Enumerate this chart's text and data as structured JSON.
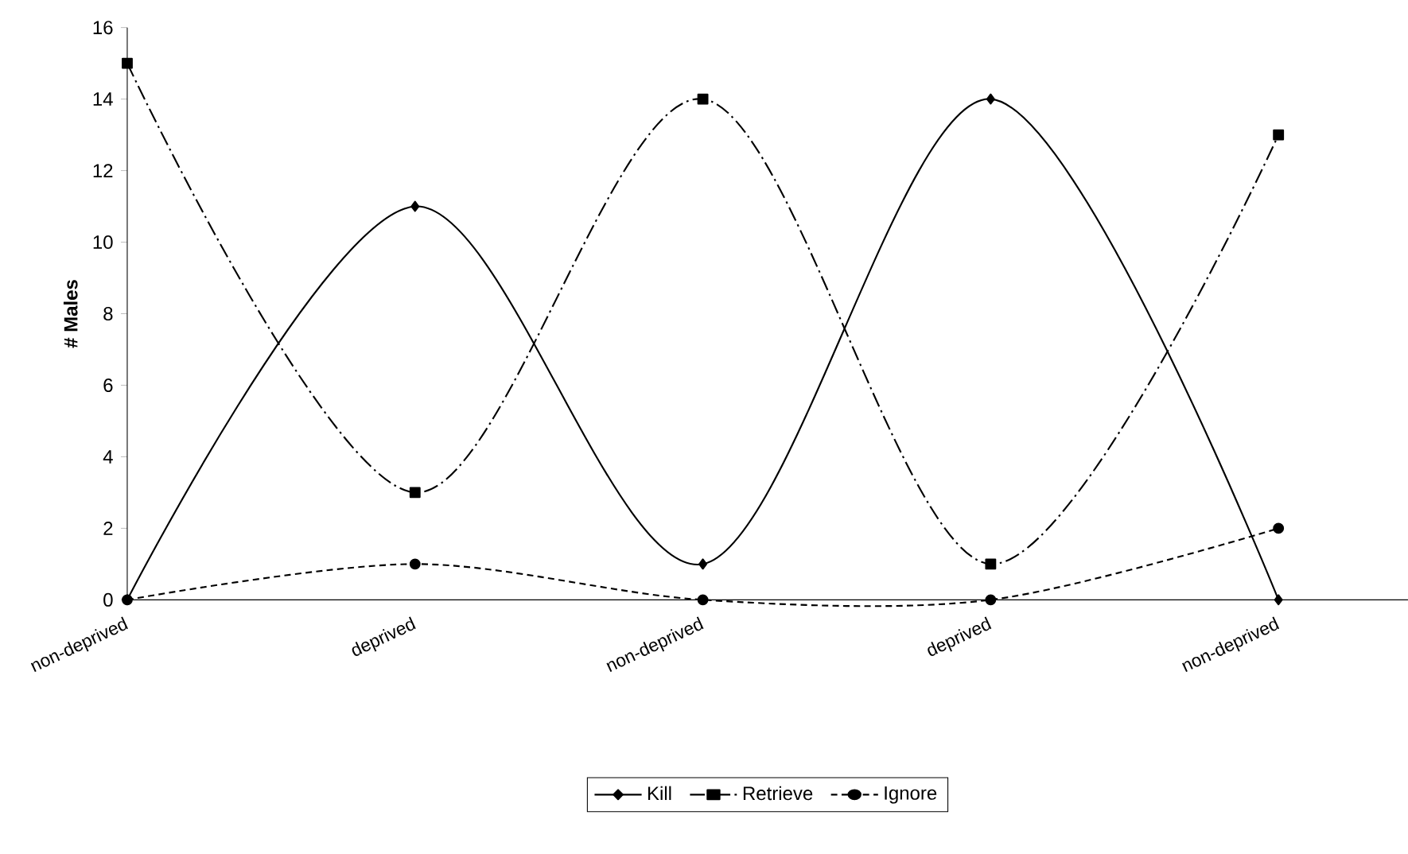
{
  "chart_data": {
    "type": "line",
    "ylabel": "# Males",
    "categories": [
      "non-deprived",
      "deprived",
      "non-deprived",
      "deprived",
      "non-deprived"
    ],
    "series": [
      {
        "name": "Kill",
        "color": "#000000",
        "values": [
          0,
          11,
          1,
          14,
          0
        ],
        "marker": "diamond",
        "line_style": "solid"
      },
      {
        "name": "Retrieve",
        "color": "#000000",
        "values": [
          15,
          3,
          14,
          1,
          13
        ],
        "marker": "square",
        "line_style": "dashed"
      },
      {
        "name": "Ignore",
        "color": "#000000",
        "values": [
          0,
          1,
          0,
          0,
          2
        ],
        "marker": "circle",
        "line_style": "dotted"
      }
    ],
    "ylim": [
      0,
      16
    ],
    "yticks": [
      0,
      2,
      4,
      6,
      8,
      10,
      12,
      14,
      16
    ],
    "grid": false,
    "legend": "bottom"
  }
}
